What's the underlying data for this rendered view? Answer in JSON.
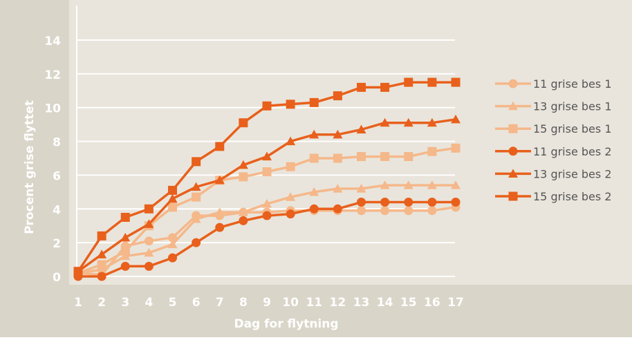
{
  "chart_data": {
    "type": "line",
    "title": "",
    "xlabel": "Dag for flytning",
    "ylabel": "Procent grise flyttet",
    "categories": [
      "1",
      "2",
      "3",
      "4",
      "5",
      "6",
      "7",
      "8",
      "9",
      "10",
      "11",
      "12",
      "13",
      "14",
      "15",
      "16",
      "17"
    ],
    "ylim": [
      0,
      14
    ],
    "yticks": [
      "0",
      "2",
      "4",
      "6",
      "8",
      "10",
      "12",
      "14"
    ],
    "grid": true,
    "legend_position": "right",
    "series": [
      {
        "name": "11 grise bes 1",
        "marker": "circle",
        "color": "#F5B88A",
        "values": [
          0.2,
          0.1,
          1.8,
          2.1,
          2.3,
          3.6,
          3.6,
          3.8,
          3.8,
          3.9,
          3.9,
          3.9,
          3.9,
          3.9,
          3.9,
          3.9,
          4.1
        ]
      },
      {
        "name": "13 grise bes 1",
        "marker": "triangle",
        "color": "#F5B88A",
        "values": [
          0.2,
          0.4,
          1.2,
          1.4,
          1.9,
          3.4,
          3.8,
          3.8,
          4.3,
          4.7,
          5.0,
          5.2,
          5.2,
          5.4,
          5.4,
          5.4,
          5.4
        ]
      },
      {
        "name": "15 grise bes 1",
        "marker": "square",
        "color": "#F5B88A",
        "values": [
          0.2,
          0.7,
          1.5,
          3.0,
          4.1,
          4.7,
          5.7,
          5.9,
          6.2,
          6.5,
          7.0,
          7.0,
          7.1,
          7.1,
          7.1,
          7.4,
          7.6
        ]
      },
      {
        "name": "11 grise bes 2",
        "marker": "circle",
        "color": "#E8601C",
        "values": [
          0.0,
          0.0,
          0.6,
          0.6,
          1.1,
          2.0,
          2.9,
          3.3,
          3.6,
          3.7,
          4.0,
          4.0,
          4.4,
          4.4,
          4.4,
          4.4,
          4.4
        ]
      },
      {
        "name": "13 grise bes 2",
        "marker": "triangle",
        "color": "#E8601C",
        "values": [
          0.3,
          1.3,
          2.3,
          3.1,
          4.6,
          5.3,
          5.7,
          6.6,
          7.1,
          8.0,
          8.4,
          8.4,
          8.7,
          9.1,
          9.1,
          9.1,
          9.3
        ]
      },
      {
        "name": "15 grise bes 2",
        "marker": "square",
        "color": "#E8601C",
        "values": [
          0.3,
          2.4,
          3.5,
          4.0,
          5.1,
          6.8,
          7.7,
          9.1,
          10.1,
          10.2,
          10.3,
          10.7,
          11.2,
          11.2,
          11.5,
          11.5,
          11.5
        ]
      }
    ]
  },
  "colors": {
    "plot_background": "#E9E5DC",
    "outer_background": "#D9D5C9",
    "axis_text": "#ffffff",
    "gridline": "#ffffff",
    "legend_text": "#555555"
  }
}
